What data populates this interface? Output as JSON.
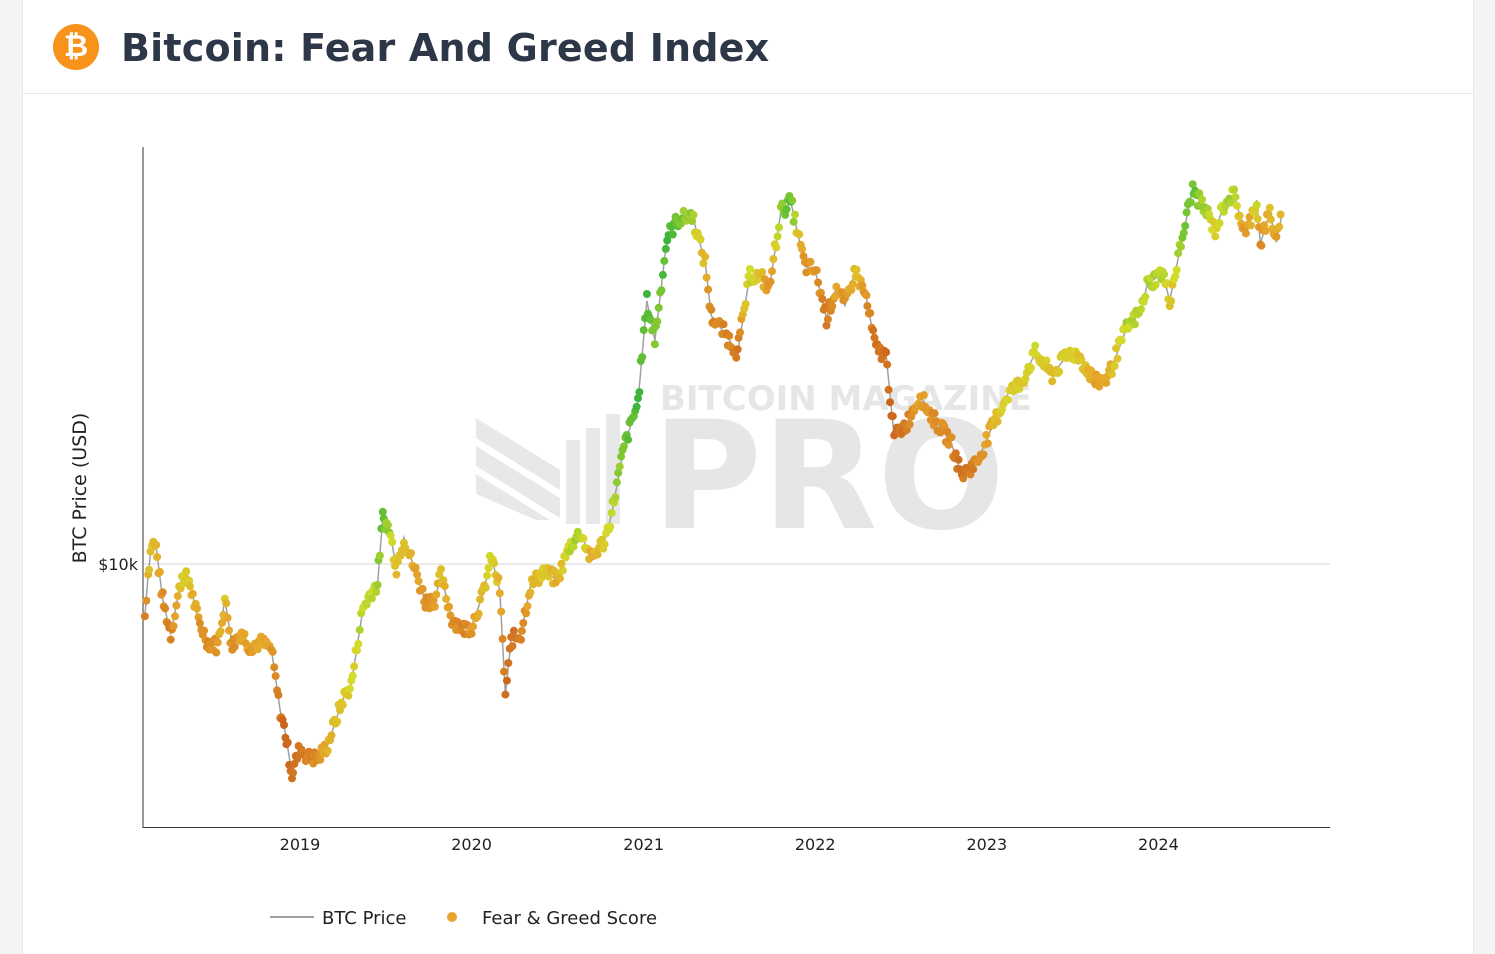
{
  "header": {
    "title": "Bitcoin: Fear And Greed Index",
    "icon": "bitcoin-logo-icon",
    "icon_glyph": "₿",
    "icon_color": "#f7931a"
  },
  "watermark": {
    "line1": "BITCOIN MAGAZINE",
    "line2": "PRO"
  },
  "chart_data": {
    "type": "scatter",
    "title": "",
    "ylabel": "BTC Price (USD)",
    "xlabel": "",
    "y_scale": "log",
    "ylim": [
      2500,
      90000
    ],
    "xlim": [
      "2018-02-01",
      "2024-12-31"
    ],
    "x_ticks": [
      {
        "date": "2019-01-01",
        "label": "2019"
      },
      {
        "date": "2020-01-01",
        "label": "2020"
      },
      {
        "date": "2021-01-01",
        "label": "2021"
      },
      {
        "date": "2022-01-01",
        "label": "2022"
      },
      {
        "date": "2023-01-01",
        "label": "2023"
      },
      {
        "date": "2024-01-01",
        "label": "2024"
      }
    ],
    "y_ticks": [
      {
        "value": 10000,
        "label": "$10k"
      }
    ],
    "grid": "horizontal",
    "legend": "bottom",
    "colors": {
      "fear": "#c4541a",
      "neutral": "#e6a52b",
      "greed": "#d4dc2a",
      "extreme_greed": "#3cb53a",
      "price_line": "#a0a0a0"
    },
    "series": [
      {
        "name": "BTC Price",
        "style": "line"
      },
      {
        "name": "Fear & Greed Score",
        "style": "markers"
      }
    ],
    "points": [
      [
        "2018-02-05",
        7600,
        20
      ],
      [
        "2018-02-12",
        9500,
        45
      ],
      [
        "2018-02-20",
        11200,
        55
      ],
      [
        "2018-03-01",
        10900,
        50
      ],
      [
        "2018-03-15",
        8300,
        30
      ],
      [
        "2018-04-01",
        6900,
        20
      ],
      [
        "2018-04-25",
        9400,
        60
      ],
      [
        "2018-05-10",
        9200,
        55
      ],
      [
        "2018-05-30",
        7400,
        35
      ],
      [
        "2018-06-20",
        6600,
        25
      ],
      [
        "2018-07-10",
        6500,
        35
      ],
      [
        "2018-07-25",
        8300,
        55
      ],
      [
        "2018-08-10",
        6500,
        30
      ],
      [
        "2018-08-30",
        7000,
        40
      ],
      [
        "2018-09-15",
        6500,
        35
      ],
      [
        "2018-10-10",
        6600,
        40
      ],
      [
        "2018-11-01",
        6400,
        35
      ],
      [
        "2018-11-20",
        4600,
        15
      ],
      [
        "2018-12-01",
        4100,
        10
      ],
      [
        "2018-12-15",
        3300,
        12
      ],
      [
        "2019-01-01",
        3800,
        20
      ],
      [
        "2019-01-20",
        3600,
        25
      ],
      [
        "2019-02-10",
        3600,
        30
      ],
      [
        "2019-03-01",
        3850,
        45
      ],
      [
        "2019-04-02",
        4900,
        55
      ],
      [
        "2019-04-20",
        5300,
        60
      ],
      [
        "2019-05-15",
        7900,
        70
      ],
      [
        "2019-06-01",
        8600,
        70
      ],
      [
        "2019-06-15",
        9000,
        75
      ],
      [
        "2019-06-26",
        12800,
        85
      ],
      [
        "2019-07-10",
        12000,
        75
      ],
      [
        "2019-07-25",
        9800,
        50
      ],
      [
        "2019-08-10",
        11500,
        55
      ],
      [
        "2019-09-01",
        9800,
        40
      ],
      [
        "2019-09-25",
        8200,
        30
      ],
      [
        "2019-10-15",
        8300,
        35
      ],
      [
        "2019-10-28",
        9400,
        55
      ],
      [
        "2019-11-20",
        7500,
        30
      ],
      [
        "2019-12-15",
        7100,
        25
      ],
      [
        "2020-01-01",
        7200,
        35
      ],
      [
        "2020-01-25",
        8500,
        50
      ],
      [
        "2020-02-12",
        10400,
        65
      ],
      [
        "2020-03-01",
        8700,
        45
      ],
      [
        "2020-03-13",
        5000,
        10
      ],
      [
        "2020-03-25",
        6700,
        15
      ],
      [
        "2020-04-15",
        6900,
        25
      ],
      [
        "2020-05-05",
        8900,
        45
      ],
      [
        "2020-06-01",
        9600,
        55
      ],
      [
        "2020-07-01",
        9200,
        45
      ],
      [
        "2020-07-28",
        11000,
        70
      ],
      [
        "2020-08-20",
        11800,
        75
      ],
      [
        "2020-09-10",
        10300,
        45
      ],
      [
        "2020-10-10",
        11300,
        55
      ],
      [
        "2020-10-25",
        13000,
        70
      ],
      [
        "2020-11-20",
        18500,
        85
      ],
      [
        "2020-12-20",
        23500,
        92
      ],
      [
        "2021-01-08",
        40000,
        93
      ],
      [
        "2021-01-25",
        32500,
        80
      ],
      [
        "2021-02-20",
        56000,
        92
      ],
      [
        "2021-03-13",
        61000,
        85
      ],
      [
        "2021-04-14",
        63000,
        75
      ],
      [
        "2021-05-12",
        49000,
        45
      ],
      [
        "2021-05-25",
        37000,
        25
      ],
      [
        "2021-06-20",
        34000,
        25
      ],
      [
        "2021-07-20",
        30500,
        20
      ],
      [
        "2021-08-15",
        46000,
        70
      ],
      [
        "2021-09-10",
        45000,
        45
      ],
      [
        "2021-09-25",
        42500,
        30
      ],
      [
        "2021-10-20",
        64000,
        80
      ],
      [
        "2021-11-10",
        67500,
        88
      ],
      [
        "2021-11-25",
        57000,
        55
      ],
      [
        "2021-12-10",
        48000,
        30
      ],
      [
        "2022-01-01",
        47000,
        35
      ],
      [
        "2022-01-25",
        36500,
        20
      ],
      [
        "2022-02-15",
        43000,
        40
      ],
      [
        "2022-03-05",
        39000,
        30
      ],
      [
        "2022-03-28",
        47000,
        55
      ],
      [
        "2022-04-20",
        40500,
        30
      ],
      [
        "2022-05-10",
        31000,
        15
      ],
      [
        "2022-06-01",
        30000,
        15
      ],
      [
        "2022-06-18",
        19500,
        8
      ],
      [
        "2022-07-15",
        21000,
        20
      ],
      [
        "2022-08-12",
        24300,
        40
      ],
      [
        "2022-09-10",
        21500,
        30
      ],
      [
        "2022-10-15",
        19200,
        28
      ],
      [
        "2022-11-09",
        16000,
        15
      ],
      [
        "2022-12-10",
        17000,
        25
      ],
      [
        "2023-01-15",
        20900,
        50
      ],
      [
        "2023-02-15",
        24500,
        62
      ],
      [
        "2023-03-15",
        26000,
        55
      ],
      [
        "2023-04-14",
        30400,
        65
      ],
      [
        "2023-05-20",
        27000,
        50
      ],
      [
        "2023-06-25",
        30500,
        62
      ],
      [
        "2023-07-15",
        30000,
        55
      ],
      [
        "2023-08-20",
        26000,
        40
      ],
      [
        "2023-09-15",
        26600,
        45
      ],
      [
        "2023-10-25",
        34500,
        70
      ],
      [
        "2023-11-25",
        37800,
        70
      ],
      [
        "2023-12-08",
        43500,
        72
      ],
      [
        "2024-01-10",
        46500,
        70
      ],
      [
        "2024-01-25",
        40000,
        50
      ],
      [
        "2024-02-15",
        52000,
        78
      ],
      [
        "2024-03-14",
        72000,
        88
      ],
      [
        "2024-04-15",
        63000,
        70
      ],
      [
        "2024-05-01",
        58000,
        55
      ],
      [
        "2024-05-25",
        69000,
        75
      ],
      [
        "2024-06-10",
        69500,
        70
      ],
      [
        "2024-07-05",
        56500,
        30
      ],
      [
        "2024-07-28",
        68000,
        65
      ],
      [
        "2024-08-05",
        54000,
        25
      ],
      [
        "2024-08-25",
        64000,
        50
      ],
      [
        "2024-09-08",
        54500,
        35
      ],
      [
        "2024-09-20",
        63000,
        50
      ]
    ]
  }
}
